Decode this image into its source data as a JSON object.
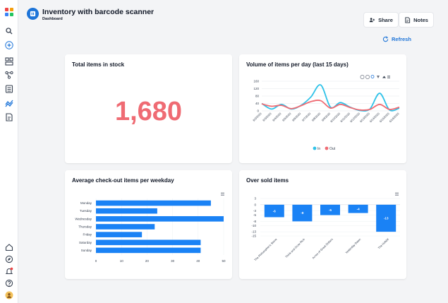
{
  "app": {
    "title": "Inventory with barcode scanner",
    "page": "Dashboard"
  },
  "header": {
    "share_label": "Share",
    "notes_label": "Notes",
    "refresh_label": "Refresh"
  },
  "rail": {
    "icons": [
      "apps-grid-icon",
      "search-icon",
      "add-icon",
      "dashboard-icon",
      "workflow-icon",
      "table-icon",
      "automation-icon",
      "form-icon",
      "home-icon",
      "explore-icon",
      "notifications-icon",
      "help-icon",
      "user-avatar"
    ]
  },
  "colors": {
    "accent": "#1d74d8",
    "big_number": "#ef6b73",
    "in_series": "#2fc2e8",
    "out_series": "#ef6b73",
    "bar": "#1a82f5"
  },
  "cards": {
    "stock": {
      "title": "Total items in stock",
      "value": "1,680"
    },
    "volume": {
      "title": "Volume of items per day (last 15 days)"
    },
    "weekday": {
      "title": "Average check-out items per weekday"
    },
    "oversold": {
      "title": "Over sold items"
    }
  },
  "chart_data": [
    {
      "id": "volume",
      "type": "line",
      "title": "Volume of items per day (last 15 days)",
      "x": [
        "6/2/2020",
        "6/3/2020",
        "6/4/2020",
        "6/5/2020",
        "6/6/2020",
        "6/7/2020",
        "6/8/2020",
        "6/9/2020",
        "6/10/2020",
        "6/11/2020",
        "6/12/2020",
        "6/13/2020",
        "6/14/2020",
        "6/15/2020",
        "6/16/2020"
      ],
      "ylim": [
        0,
        160
      ],
      "yticks": [
        0,
        40,
        80,
        120,
        160
      ],
      "ytick_labels": [
        "0",
        "40",
        "80",
        "120",
        "160"
      ],
      "series": [
        {
          "name": "In",
          "values": [
            40,
            10,
            35,
            10,
            30,
            75,
            140,
            20,
            45,
            20,
            2,
            10,
            95,
            5,
            15
          ]
        },
        {
          "name": "Out",
          "values": [
            38,
            25,
            30,
            12,
            28,
            50,
            55,
            15,
            35,
            18,
            5,
            8,
            35,
            8,
            20
          ]
        }
      ],
      "legend": [
        "In",
        "Out"
      ],
      "legend_position": "bottom"
    },
    {
      "id": "weekday",
      "type": "bar",
      "orientation": "horizontal",
      "title": "Average check-out items per weekday",
      "categories": [
        "Monday",
        "Tuesday",
        "Wednesday",
        "Thursday",
        "Friday",
        "Saturday",
        "Sunday"
      ],
      "values": [
        45,
        24,
        50,
        23,
        18,
        41,
        41
      ],
      "xlim": [
        0,
        50
      ],
      "xticks": [
        "0",
        "10",
        "20",
        "30",
        "40",
        "50"
      ]
    },
    {
      "id": "oversold",
      "type": "bar",
      "title": "Over sold items",
      "categories": [
        "The Philosopher's Stone",
        "Think and Grow Rich",
        "Acres of Great Dollars",
        "Yesterday Dawn",
        "The Hobbit"
      ],
      "values": [
        -6,
        -8,
        -5,
        -4,
        -13
      ],
      "value_labels": [
        "-6",
        "-8",
        "-5",
        "-4",
        "-13"
      ],
      "ylim": [
        -15,
        3
      ],
      "yticks": [
        3,
        0,
        -3,
        -5,
        -8,
        -10,
        -13,
        -15
      ],
      "ytick_labels": [
        "3",
        "0",
        "-3",
        "-5",
        "-8",
        "-10",
        "-13",
        "-15"
      ]
    }
  ]
}
